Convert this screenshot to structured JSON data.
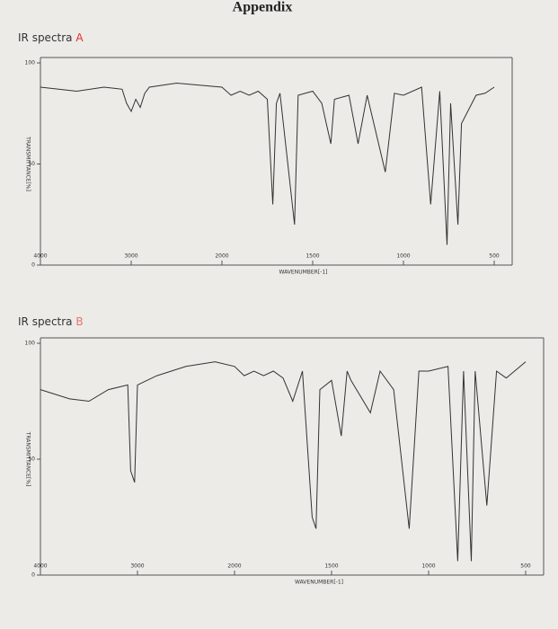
{
  "header": {
    "title": "Appendix"
  },
  "chart_data": [
    {
      "type": "line",
      "title": "IR spectra",
      "label": "A",
      "x_label": "WAVENUMBER[-1]",
      "y_label": "TRANSMITTANCE[%]",
      "color": "#333333",
      "label_color": "#d9342b",
      "x": [
        4000,
        3600,
        3300,
        3100,
        3050,
        3000,
        2950,
        2900,
        2850,
        2800,
        2500,
        2000,
        1950,
        1900,
        1850,
        1800,
        1750,
        1720,
        1700,
        1680,
        1600,
        1580,
        1500,
        1450,
        1400,
        1380,
        1300,
        1250,
        1200,
        1100,
        1050,
        1000,
        900,
        850,
        800,
        760,
        740,
        700,
        680,
        600,
        550,
        500
      ],
      "values": [
        88,
        86,
        88,
        87,
        80,
        76,
        82,
        78,
        85,
        88,
        90,
        88,
        84,
        86,
        84,
        86,
        82,
        30,
        80,
        85,
        20,
        84,
        86,
        80,
        60,
        82,
        84,
        60,
        84,
        46,
        85,
        84,
        88,
        30,
        86,
        10,
        80,
        20,
        70,
        84,
        85,
        88
      ],
      "xlim": [
        4000,
        500
      ],
      "xticks": [
        4000,
        3000,
        2000,
        1500,
        1000,
        500
      ],
      "ylim": [
        0,
        100
      ],
      "yticks": [
        0,
        50,
        100
      ]
    },
    {
      "type": "line",
      "title": "IR spectra",
      "label": "B",
      "x_label": "WAVENUMBER[-1]",
      "y_label": "TRANSMITTANCE[%]",
      "color": "#333333",
      "label_color": "#e8736b",
      "x": [
        4000,
        3700,
        3500,
        3300,
        3100,
        3070,
        3030,
        3000,
        2800,
        2500,
        2200,
        2000,
        1950,
        1900,
        1850,
        1800,
        1750,
        1700,
        1650,
        1600,
        1580,
        1560,
        1500,
        1450,
        1420,
        1400,
        1300,
        1250,
        1180,
        1100,
        1050,
        1000,
        900,
        850,
        820,
        780,
        760,
        700,
        650,
        600,
        500
      ],
      "values": [
        80,
        76,
        75,
        80,
        82,
        45,
        40,
        82,
        86,
        90,
        92,
        90,
        86,
        88,
        86,
        88,
        85,
        75,
        88,
        25,
        20,
        80,
        84,
        60,
        88,
        84,
        70,
        88,
        80,
        20,
        88,
        88,
        90,
        6,
        88,
        6,
        88,
        30,
        88,
        85,
        92
      ],
      "xlim": [
        4000,
        500
      ],
      "xticks": [
        4000,
        3000,
        2000,
        1500,
        1000,
        500
      ],
      "ylim": [
        0,
        100
      ],
      "yticks": [
        0,
        50,
        100
      ]
    }
  ]
}
